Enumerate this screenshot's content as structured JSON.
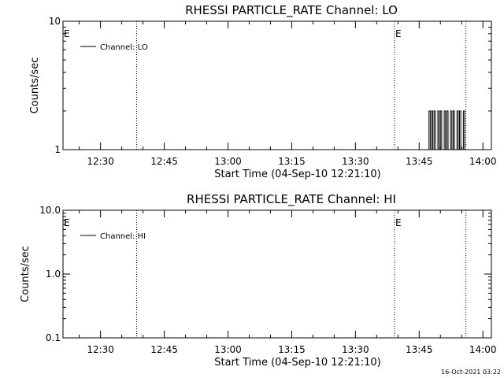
{
  "footer": {
    "timestamp": "16-Oct-2021 03:22"
  },
  "chart_data": [
    {
      "type": "line",
      "title": "RHESSI PARTICLE_RATE Channel: LO",
      "xlabel": "Start Time (04-Sep-10 12:21:10)",
      "ylabel": "Counts/sec",
      "x_unit": "minutes after 12:00",
      "xlim": [
        21.17,
        122.0
      ],
      "ylim": [
        1,
        10
      ],
      "yscale": "log",
      "x_ticks": [
        {
          "value": 30,
          "label": "12:30"
        },
        {
          "value": 45,
          "label": "12:45"
        },
        {
          "value": 60,
          "label": "13:00"
        },
        {
          "value": 75,
          "label": "13:15"
        },
        {
          "value": 90,
          "label": "13:30"
        },
        {
          "value": 105,
          "label": "13:45"
        },
        {
          "value": 120,
          "label": "14:00"
        }
      ],
      "y_ticks": [
        {
          "value": 1,
          "label": "1"
        },
        {
          "value": 10,
          "label": "10"
        }
      ],
      "markers": [
        {
          "x": 21.17,
          "label": "E",
          "line": false
        },
        {
          "x": 38.5,
          "label": "",
          "line": true
        },
        {
          "x": 99.2,
          "label": "E",
          "line": true
        },
        {
          "x": 116.0,
          "label": "",
          "line": true
        }
      ],
      "legend": {
        "position": "top-left",
        "entries": [
          "Channel: LO"
        ]
      },
      "series": [
        {
          "name": "Channel: LO",
          "x": [
            107.0,
            107.3,
            107.6,
            107.9,
            108.2,
            108.5,
            108.8,
            109.1,
            109.4,
            109.7,
            110.0,
            110.3,
            110.6,
            110.9,
            111.2,
            111.5,
            111.8,
            112.1,
            112.4,
            112.7,
            113.0,
            113.3,
            113.6,
            113.9,
            114.2,
            114.5,
            114.8,
            115.1,
            115.4,
            115.7,
            116.0
          ],
          "y": [
            1,
            2,
            1,
            2,
            1,
            2,
            1,
            1,
            2,
            1,
            2,
            1,
            1,
            2,
            1,
            2,
            1,
            1,
            2,
            1,
            2,
            1,
            1,
            2,
            1,
            2,
            1,
            1,
            2,
            1,
            1
          ]
        }
      ]
    },
    {
      "type": "line",
      "title": "RHESSI PARTICLE_RATE Channel: HI",
      "xlabel": "Start Time (04-Sep-10 12:21:10)",
      "ylabel": "Counts/sec",
      "x_unit": "minutes after 12:00",
      "xlim": [
        21.17,
        122.0
      ],
      "ylim": [
        0.1,
        10.0
      ],
      "yscale": "log",
      "x_ticks": [
        {
          "value": 30,
          "label": "12:30"
        },
        {
          "value": 45,
          "label": "12:45"
        },
        {
          "value": 60,
          "label": "13:00"
        },
        {
          "value": 75,
          "label": "13:15"
        },
        {
          "value": 90,
          "label": "13:30"
        },
        {
          "value": 105,
          "label": "13:45"
        },
        {
          "value": 120,
          "label": "14:00"
        }
      ],
      "y_ticks": [
        {
          "value": 0.1,
          "label": "0.1"
        },
        {
          "value": 1.0,
          "label": "1.0"
        },
        {
          "value": 10.0,
          "label": "10.0"
        }
      ],
      "markers": [
        {
          "x": 21.17,
          "label": "E",
          "line": false
        },
        {
          "x": 38.5,
          "label": "",
          "line": true
        },
        {
          "x": 99.2,
          "label": "E",
          "line": true
        },
        {
          "x": 116.0,
          "label": "",
          "line": true
        }
      ],
      "legend": {
        "position": "top-left",
        "entries": [
          "Channel: HI"
        ]
      },
      "series": [
        {
          "name": "Channel: HI",
          "x": [],
          "y": []
        }
      ]
    }
  ]
}
